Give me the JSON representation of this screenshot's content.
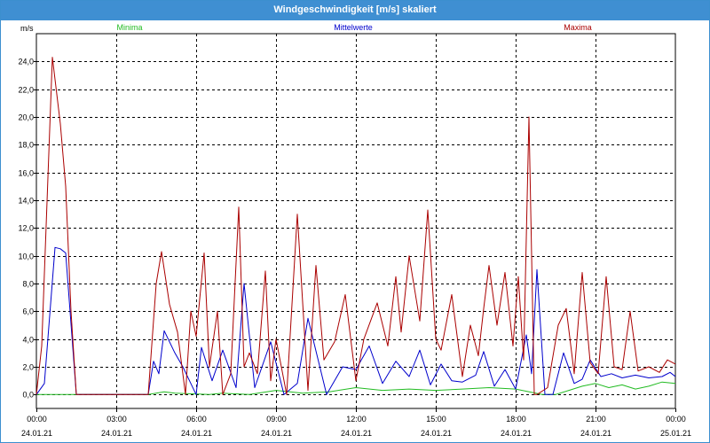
{
  "window": {
    "title": "Windgeschwindigkeit [m/s] skaliert"
  },
  "chart_data": {
    "type": "line",
    "title": "Windgeschwindigkeit [m/s] skaliert",
    "ylabel": "m/s",
    "xlabel": "",
    "ylim": [
      -1.0,
      26.0
    ],
    "xlim": [
      0,
      24
    ],
    "grid": true,
    "x_ticks": [
      {
        "time": "00:00",
        "date": "24.01.21"
      },
      {
        "time": "03:00",
        "date": "24.01.21"
      },
      {
        "time": "06:00",
        "date": "24.01.21"
      },
      {
        "time": "09:00",
        "date": "24.01.21"
      },
      {
        "time": "12:00",
        "date": "24.01.21"
      },
      {
        "time": "15:00",
        "date": "24.01.21"
      },
      {
        "time": "18:00",
        "date": "24.01.21"
      },
      {
        "time": "21:00",
        "date": "24.01.21"
      },
      {
        "time": "00:00",
        "date": "25.01.21"
      }
    ],
    "y_ticks": [
      "0,0",
      "2,0",
      "4,0",
      "6,0",
      "8,0",
      "10,0",
      "12,0",
      "14,0",
      "16,0",
      "18,0",
      "20,0",
      "22,0",
      "24,0"
    ],
    "series": [
      {
        "name": "Minima",
        "color": "#22bb22",
        "x": [
          0,
          1.5,
          4.2,
          4.8,
          5.2,
          6.5,
          7,
          8,
          9,
          10,
          11,
          12,
          13,
          14,
          15,
          16,
          17,
          18,
          19,
          19.5,
          20,
          20.5,
          21,
          21.5,
          22,
          22.5,
          23,
          23.5,
          24
        ],
        "y": [
          0,
          0,
          0,
          0.2,
          0.1,
          0,
          0.1,
          0,
          0.3,
          0.1,
          0.2,
          0.5,
          0.3,
          0.4,
          0.3,
          0.4,
          0.5,
          0.4,
          0,
          0,
          0.3,
          0.6,
          0.8,
          0.5,
          0.7,
          0.4,
          0.6,
          0.9,
          0.8
        ]
      },
      {
        "name": "Mittelwerte",
        "color": "#0000cc",
        "x": [
          0,
          0.3,
          0.7,
          0.9,
          1.1,
          1.5,
          4.2,
          4.4,
          4.6,
          4.8,
          5.2,
          5.5,
          6.0,
          6.2,
          6.6,
          7.0,
          7.5,
          7.8,
          8.2,
          8.8,
          9.3,
          9.8,
          10.2,
          10.9,
          11.5,
          12.0,
          12.5,
          13.0,
          13.5,
          14.0,
          14.4,
          14.8,
          15.2,
          15.6,
          16.0,
          16.5,
          16.8,
          17.2,
          17.6,
          18.0,
          18.4,
          18.6,
          18.8,
          19.1,
          19.4,
          19.8,
          20.2,
          20.5,
          20.8,
          21.2,
          21.6,
          22,
          22.5,
          23,
          23.5,
          23.8,
          24
        ],
        "y": [
          0,
          0.8,
          10.6,
          10.5,
          10.2,
          0,
          0,
          2.4,
          1.5,
          4.6,
          3,
          2,
          0,
          3.4,
          1,
          3.2,
          0.5,
          8,
          0.5,
          3.8,
          0,
          0.8,
          5.5,
          0,
          2,
          1.8,
          3.5,
          0.8,
          2.4,
          1.3,
          3.2,
          0.7,
          2.2,
          1,
          0.9,
          1.4,
          3.1,
          0.6,
          1.8,
          0.4,
          4.3,
          1.5,
          9,
          0,
          0,
          3,
          0.8,
          1.1,
          2.5,
          1.3,
          1.5,
          1.2,
          1.4,
          1.2,
          1.3,
          1.6,
          1.3
        ]
      },
      {
        "name": "Maxima",
        "color": "#aa0000",
        "x": [
          0,
          0.2,
          0.6,
          0.9,
          1.1,
          1.3,
          1.5,
          4.2,
          4.5,
          4.7,
          5.0,
          5.3,
          5.6,
          5.8,
          6.0,
          6.3,
          6.5,
          6.8,
          7.0,
          7.3,
          7.6,
          7.8,
          8.0,
          8.3,
          8.6,
          8.8,
          9.0,
          9.4,
          9.8,
          10.2,
          10.5,
          10.8,
          11.2,
          11.6,
          12.0,
          12.3,
          12.8,
          13.2,
          13.5,
          13.7,
          14.0,
          14.4,
          14.7,
          15.0,
          15.2,
          15.6,
          16.0,
          16.3,
          16.6,
          16.8,
          17.0,
          17.3,
          17.6,
          17.9,
          18.1,
          18.3,
          18.5,
          18.7,
          18.8,
          19.2,
          19.6,
          19.9,
          20.2,
          20.5,
          20.8,
          21.1,
          21.4,
          21.7,
          22.0,
          22.3,
          22.6,
          23.0,
          23.4,
          23.7,
          24.0
        ],
        "y": [
          0,
          3.5,
          24.3,
          19.5,
          15,
          6,
          0,
          0,
          8,
          10.3,
          6.5,
          4.5,
          0,
          6,
          4.2,
          10.2,
          2,
          6,
          0,
          1.5,
          13.5,
          2,
          3,
          1.5,
          8.9,
          1,
          4,
          0,
          13,
          0.3,
          9.3,
          2.5,
          3.8,
          7.2,
          1,
          4,
          6.6,
          3.5,
          8.5,
          4.5,
          10,
          5.3,
          13.3,
          4,
          3.2,
          7.2,
          1.3,
          5,
          2.8,
          6.2,
          9.3,
          5,
          8.8,
          3.5,
          8.5,
          2.5,
          20,
          0,
          0,
          0.5,
          5,
          6.2,
          1.5,
          8.8,
          2.3,
          1.5,
          8.5,
          2,
          1.8,
          6,
          1.7,
          2,
          1.6,
          2.5,
          2.2
        ]
      }
    ]
  }
}
